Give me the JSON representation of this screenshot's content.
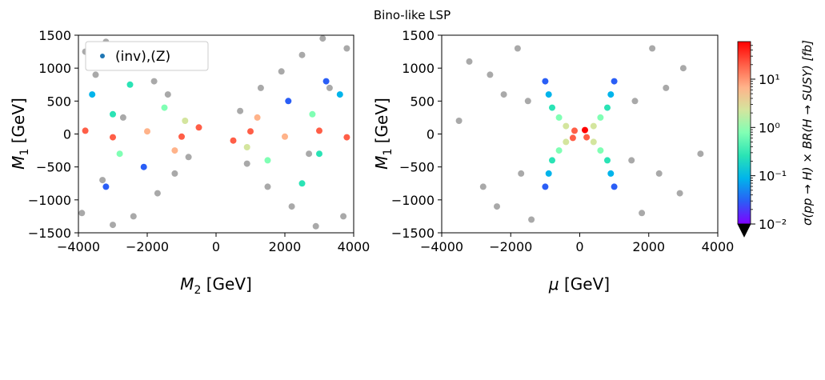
{
  "figure_title": "Bino-like LSP",
  "colors": {
    "background_point": "#a9a9a9",
    "legend_marker": "#1f77b4",
    "colormap": [
      "#7f00ff",
      "#2a5ef6",
      "#00b4eb",
      "#2ae3b5",
      "#80ffb4",
      "#d4e59e",
      "#ffb38a",
      "#ff5e47",
      "#ff0000"
    ],
    "under_color": "#a9a9a9"
  },
  "chart_data": [
    {
      "type": "scatter",
      "title": "",
      "xlabel": "M_2 [GeV]",
      "ylabel": "M_1 [GeV]",
      "xlim": [
        -4000,
        4000
      ],
      "ylim": [
        -1500,
        1500
      ],
      "xticks": [
        -4000,
        -2000,
        0,
        2000,
        4000
      ],
      "xtick_labels": [
        "−4000",
        "−2000",
        "0",
        "2000",
        "4000"
      ],
      "yticks": [
        -1500,
        -1000,
        -500,
        0,
        500,
        1000,
        1500
      ],
      "ytick_labels": [
        "−1500",
        "−1000",
        "−500",
        "0",
        "500",
        "1000",
        "1500"
      ],
      "legend": {
        "label": "(inv),(Z)",
        "placement": "upper-left"
      },
      "series": [
        {
          "role": "background",
          "color": "#a9a9a9",
          "points": [
            [
              -3800,
              1250
            ],
            [
              -3200,
              1400
            ],
            [
              -2600,
              1300
            ],
            [
              -3500,
              900
            ],
            [
              -2200,
              1100
            ],
            [
              -1800,
              800
            ],
            [
              -1400,
              600
            ],
            [
              -3900,
              -1200
            ],
            [
              -3000,
              -1380
            ],
            [
              -2400,
              -1250
            ],
            [
              -1700,
              -900
            ],
            [
              -1200,
              -600
            ],
            [
              -800,
              -350
            ],
            [
              3800,
              1300
            ],
            [
              3100,
              1450
            ],
            [
              2500,
              1200
            ],
            [
              1900,
              950
            ],
            [
              1300,
              700
            ],
            [
              700,
              350
            ],
            [
              3700,
              -1250
            ],
            [
              2900,
              -1400
            ],
            [
              2200,
              -1100
            ],
            [
              1500,
              -800
            ],
            [
              900,
              -450
            ],
            [
              -3300,
              -700
            ],
            [
              3300,
              700
            ],
            [
              -2700,
              250
            ],
            [
              2700,
              -300
            ]
          ]
        },
        {
          "role": "colored",
          "name": "(inv),(Z)",
          "points": [
            [
              -3600,
              600,
              0.1
            ],
            [
              -3000,
              300,
              0.4
            ],
            [
              -2500,
              750,
              0.2
            ],
            [
              -2100,
              -500,
              0.05
            ],
            [
              -1500,
              400,
              1.2
            ],
            [
              -900,
              200,
              3
            ],
            [
              -500,
              100,
              15
            ],
            [
              -3200,
              -800,
              0.02
            ],
            [
              -2800,
              -300,
              0.8
            ],
            [
              -1200,
              -250,
              5
            ],
            [
              -3800,
              50,
              30
            ],
            [
              -3000,
              -50,
              12
            ],
            [
              -2000,
              40,
              8
            ],
            [
              -1000,
              -40,
              20
            ],
            [
              3600,
              600,
              0.1
            ],
            [
              3000,
              -300,
              0.4
            ],
            [
              2500,
              -750,
              0.2
            ],
            [
              2100,
              500,
              0.05
            ],
            [
              1500,
              -400,
              1.2
            ],
            [
              900,
              -200,
              3
            ],
            [
              500,
              -100,
              15
            ],
            [
              3200,
              800,
              0.02
            ],
            [
              2800,
              300,
              0.8
            ],
            [
              1200,
              250,
              5
            ],
            [
              3800,
              -50,
              30
            ],
            [
              3000,
              50,
              12
            ],
            [
              2000,
              -40,
              8
            ],
            [
              1000,
              40,
              20
            ]
          ]
        }
      ]
    },
    {
      "type": "scatter",
      "title": "",
      "xlabel": "μ [GeV]",
      "ylabel": "M_1 [GeV]",
      "xlim": [
        -4000,
        4000
      ],
      "ylim": [
        -1500,
        1500
      ],
      "xticks": [
        -4000,
        -2000,
        0,
        2000,
        4000
      ],
      "xtick_labels": [
        "−4000",
        "−2000",
        "0",
        "2000",
        "4000"
      ],
      "yticks": [
        -1500,
        -1000,
        -500,
        0,
        500,
        1000,
        1500
      ],
      "ytick_labels": [
        "−1500",
        "−1000",
        "−500",
        "0",
        "500",
        "1000",
        "1500"
      ],
      "series": [
        {
          "role": "background",
          "color": "#a9a9a9",
          "points": [
            [
              -3200,
              1100
            ],
            [
              -2600,
              900
            ],
            [
              -2200,
              600
            ],
            [
              -1800,
              1300
            ],
            [
              -1500,
              500
            ],
            [
              -2800,
              -800
            ],
            [
              -2400,
              -1100
            ],
            [
              -1700,
              -600
            ],
            [
              -1400,
              -1300
            ],
            [
              3000,
              1000
            ],
            [
              2500,
              700
            ],
            [
              2100,
              1300
            ],
            [
              1600,
              500
            ],
            [
              2900,
              -900
            ],
            [
              2300,
              -600
            ],
            [
              1800,
              -1200
            ],
            [
              1500,
              -400
            ],
            [
              -3500,
              200
            ],
            [
              3500,
              -300
            ]
          ]
        },
        {
          "role": "colored",
          "points": [
            [
              -1000,
              800,
              0.03
            ],
            [
              -900,
              600,
              0.1
            ],
            [
              -800,
              400,
              0.3
            ],
            [
              -600,
              250,
              1
            ],
            [
              -400,
              120,
              3
            ],
            [
              -1000,
              -800,
              0.03
            ],
            [
              -900,
              -600,
              0.1
            ],
            [
              -800,
              -400,
              0.3
            ],
            [
              -600,
              -250,
              1
            ],
            [
              -400,
              -120,
              3
            ],
            [
              1000,
              800,
              0.03
            ],
            [
              900,
              600,
              0.1
            ],
            [
              800,
              400,
              0.3
            ],
            [
              600,
              250,
              1
            ],
            [
              400,
              120,
              3
            ],
            [
              1000,
              -800,
              0.03
            ],
            [
              900,
              -600,
              0.1
            ],
            [
              800,
              -400,
              0.3
            ],
            [
              600,
              -250,
              1
            ],
            [
              400,
              -120,
              3
            ],
            [
              -150,
              50,
              30
            ],
            [
              150,
              60,
              40
            ],
            [
              -200,
              -60,
              15
            ],
            [
              200,
              -50,
              20
            ]
          ]
        }
      ]
    }
  ],
  "colorbar": {
    "label": "σ(pp → H) × BR(H → SUSY) [fb]",
    "scale": "log",
    "range": [
      0.01,
      60
    ],
    "ticks": [
      0.01,
      0.1,
      1,
      10
    ],
    "tick_labels": [
      "10⁻²",
      "10⁻¹",
      "10⁰",
      "10¹"
    ],
    "extend": "min"
  }
}
